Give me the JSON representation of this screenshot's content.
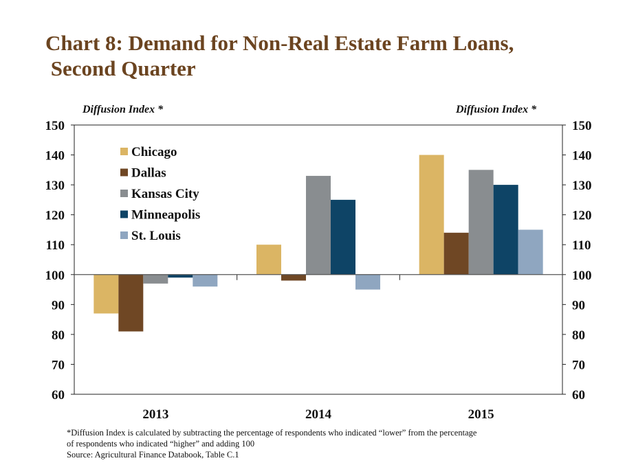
{
  "chart_data": {
    "type": "bar",
    "title": "Chart 8: Demand for Non-Real Estate Farm Loans,\n Second Quarter",
    "ylabel_left": "Diffusion Index *",
    "ylabel_right": "Diffusion Index *",
    "categories": [
      "2013",
      "2014",
      "2015"
    ],
    "baseline": 100,
    "ylim": [
      60,
      150
    ],
    "yticks": [
      60,
      70,
      80,
      90,
      100,
      110,
      120,
      130,
      140,
      150
    ],
    "legend_position": "top-left",
    "series": [
      {
        "name": "Chicago",
        "color": "#dbb564",
        "values": [
          87,
          110,
          140
        ]
      },
      {
        "name": "Dallas",
        "color": "#6f4724",
        "values": [
          81,
          98,
          114
        ]
      },
      {
        "name": "Kansas City",
        "color": "#898d90",
        "values": [
          97,
          133,
          135
        ]
      },
      {
        "name": "Minneapolis",
        "color": "#0e4466",
        "values": [
          99,
          125,
          130
        ]
      },
      {
        "name": "St. Louis",
        "color": "#8fa6c0",
        "values": [
          96,
          95,
          115
        ]
      }
    ]
  },
  "footnote": {
    "line1": "*Diffusion Index is calculated by subtracting the percentage of respondents who indicated “lower” from the percentage",
    "line2": "of  respondents who indicated “higher” and adding 100",
    "source": "Source: Agricultural Finance Databook, Table C.1"
  }
}
